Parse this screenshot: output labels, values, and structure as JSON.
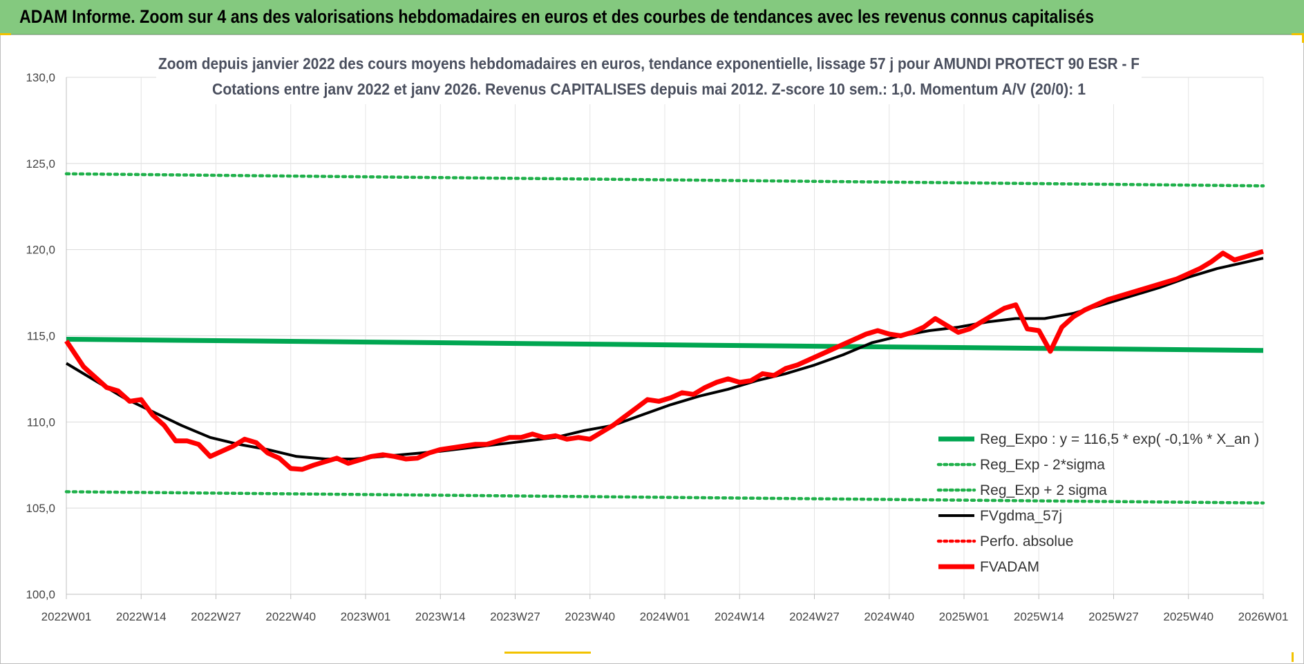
{
  "header": {
    "title": "ADAM Informe. Zoom sur 4 ans des valorisations hebdomadaires en euros et des courbes de tendances avec les revenus connus capitalisés"
  },
  "colors": {
    "banner": "#84c97f",
    "reg_green": "#00a651",
    "dotted_green": "#1fb04a",
    "black": "#000000",
    "red": "#ff0000",
    "grid": "#d9d9d9"
  },
  "chart_data": {
    "type": "line",
    "title_line1": "Zoom depuis janvier 2022 des cours moyens hebdomadaires en euros, tendance exponentielle, lissage 57 j pour AMUNDI PROTECT 90 ESR - F",
    "title_line2": "Cotations entre janv 2022 et janv 2026. Revenus CAPITALISES depuis mai 2012. Z-score 10 sem.: 1,0. Momentum A/V (20/0): 1",
    "xlabel": "",
    "ylabel": "",
    "ylim": [
      100,
      130
    ],
    "yticks": [
      100,
      105,
      110,
      115,
      120,
      125,
      130
    ],
    "ytick_labels": [
      "100,0",
      "105,0",
      "110,0",
      "115,0",
      "120,0",
      "125,0",
      "130,0"
    ],
    "x_range": [
      0,
      208
    ],
    "xticks": [
      0,
      13,
      26,
      39,
      52,
      65,
      78,
      91,
      104,
      117,
      130,
      143,
      156,
      169,
      182,
      195,
      208
    ],
    "xtick_labels": [
      "2022W01",
      "2022W14",
      "2022W27",
      "2022W40",
      "2023W01",
      "2023W14",
      "2023W27",
      "2023W40",
      "2024W01",
      "2024W14",
      "2024W27",
      "2024W40",
      "2025W01",
      "2025W14",
      "2025W27",
      "2025W40",
      "2026W01"
    ],
    "legend_position": "bottom-right",
    "series": [
      {
        "name": "Reg_Expo : y = 116,5 * exp( -0,1% *  X_an )",
        "style": "solid-thick",
        "color": "#00a651",
        "x": [
          0,
          208
        ],
        "values": [
          114.8,
          114.15
        ]
      },
      {
        "name": "Reg_Exp - 2*sigma",
        "style": "dotted",
        "color": "#1fb04a",
        "x": [
          0,
          208
        ],
        "values": [
          105.95,
          105.3
        ]
      },
      {
        "name": "Reg_Exp + 2 sigma",
        "style": "dotted",
        "color": "#1fb04a",
        "x": [
          0,
          208
        ],
        "values": [
          124.4,
          123.7
        ]
      },
      {
        "name": "FVgdma_57j",
        "style": "solid",
        "color": "#000000",
        "x": [
          0,
          5,
          10,
          15,
          20,
          25,
          30,
          35,
          40,
          45,
          50,
          55,
          60,
          65,
          70,
          75,
          80,
          85,
          90,
          95,
          100,
          105,
          110,
          115,
          120,
          125,
          130,
          135,
          140,
          145,
          150,
          155,
          160,
          165,
          170,
          175,
          180,
          185,
          190,
          195,
          200,
          208
        ],
        "values": [
          113.4,
          112.4,
          111.4,
          110.6,
          109.8,
          109.1,
          108.7,
          108.4,
          108.0,
          107.85,
          107.85,
          108.0,
          108.15,
          108.3,
          108.5,
          108.7,
          108.9,
          109.1,
          109.5,
          109.8,
          110.4,
          111.0,
          111.5,
          111.9,
          112.4,
          112.8,
          113.3,
          113.9,
          114.6,
          115.0,
          115.3,
          115.5,
          115.8,
          116.0,
          116.0,
          116.3,
          116.8,
          117.3,
          117.8,
          118.4,
          118.9,
          119.5
        ]
      },
      {
        "name": "Perfo. absolue",
        "style": "dotted",
        "color": "#ff0000",
        "x": [],
        "values": []
      },
      {
        "name": "FVADAM",
        "style": "solid-thick",
        "color": "#ff0000",
        "x": [
          0,
          3,
          5,
          7,
          9,
          11,
          13,
          15,
          17,
          19,
          21,
          23,
          25,
          27,
          29,
          31,
          33,
          35,
          37,
          39,
          41,
          43,
          45,
          47,
          49,
          51,
          53,
          55,
          57,
          59,
          61,
          63,
          65,
          67,
          69,
          71,
          73,
          75,
          77,
          79,
          81,
          83,
          85,
          87,
          89,
          91,
          93,
          95,
          97,
          99,
          101,
          103,
          105,
          107,
          109,
          111,
          113,
          115,
          117,
          119,
          121,
          123,
          125,
          127,
          129,
          131,
          133,
          135,
          137,
          139,
          141,
          143,
          145,
          147,
          149,
          151,
          153,
          155,
          157,
          159,
          161,
          163,
          165,
          167,
          169,
          171,
          173,
          175,
          177,
          179,
          181,
          183,
          185,
          187,
          189,
          191,
          193,
          195,
          197,
          199,
          201,
          203,
          205,
          208
        ],
        "values": [
          114.7,
          113.2,
          112.6,
          112.0,
          111.8,
          111.2,
          111.3,
          110.4,
          109.8,
          108.9,
          108.9,
          108.7,
          108.0,
          108.3,
          108.6,
          109.0,
          108.8,
          108.2,
          107.9,
          107.3,
          107.25,
          107.5,
          107.7,
          107.9,
          107.6,
          107.8,
          108.0,
          108.1,
          108.0,
          107.85,
          107.9,
          108.2,
          108.4,
          108.5,
          108.6,
          108.7,
          108.7,
          108.9,
          109.1,
          109.1,
          109.3,
          109.1,
          109.2,
          109.0,
          109.1,
          109.0,
          109.4,
          109.8,
          110.3,
          110.8,
          111.3,
          111.2,
          111.4,
          111.7,
          111.6,
          112.0,
          112.3,
          112.5,
          112.3,
          112.4,
          112.8,
          112.7,
          113.1,
          113.3,
          113.6,
          113.9,
          114.2,
          114.5,
          114.8,
          115.1,
          115.3,
          115.1,
          115.0,
          115.2,
          115.5,
          116.0,
          115.6,
          115.2,
          115.4,
          115.8,
          116.2,
          116.6,
          116.8,
          115.4,
          115.3,
          114.1,
          115.5,
          116.1,
          116.5,
          116.8,
          117.1,
          117.3,
          117.5,
          117.7,
          117.9,
          118.1,
          118.3,
          118.6,
          118.9,
          119.3,
          119.8,
          119.4,
          119.6,
          119.9
        ]
      }
    ]
  }
}
